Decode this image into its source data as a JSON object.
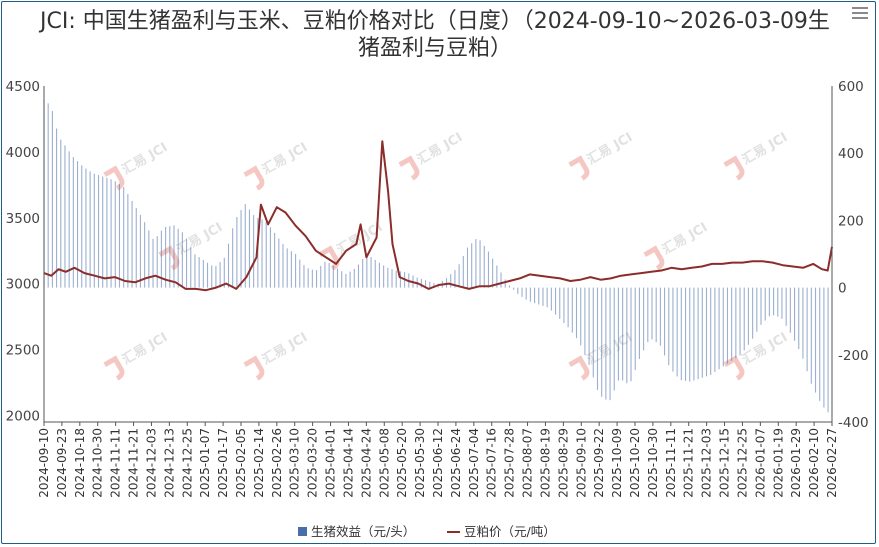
{
  "chart_data": {
    "type": "bar+line",
    "title": "JCI: 中国生猪盈利与玉米、豆粕价格对比（日度）（2024-09-10~2026-03-09生猪盈利与豆粕）",
    "watermark": "汇易 JCI",
    "x_range": [
      "2024-09-10",
      "2026-03-09"
    ],
    "x_tick_labels": [
      "2024-09-10",
      "2024-09-23",
      "2024-10-18",
      "2024-10-30",
      "2024-11-11",
      "2024-11-21",
      "2024-12-03",
      "2024-12-13",
      "2024-12-25",
      "2025-01-07",
      "2025-01-17",
      "2025-02-05",
      "2025-02-14",
      "2025-02-26",
      "2025-03-10",
      "2025-03-20",
      "2025-04-01",
      "2025-04-14",
      "2025-04-24",
      "2025-05-08",
      "2025-05-20",
      "2025-05-30",
      "2025-06-12",
      "2025-06-24",
      "2025-07-04",
      "2025-07-16",
      "2025-07-28",
      "2025-08-07",
      "2025-08-19",
      "2025-08-29",
      "2025-09-10",
      "2025-09-22",
      "2025-10-09",
      "2025-10-20",
      "2025-10-30",
      "2025-11-11",
      "2025-11-21",
      "2025-12-03",
      "2025-12-15",
      "2025-12-25",
      "2026-01-07",
      "2026-01-19",
      "2026-01-29",
      "2026-02-10",
      "2026-02-27"
    ],
    "y_left": {
      "range": [
        1950,
        4500
      ],
      "ticks": [
        2000,
        2500,
        3000,
        3500,
        4000,
        4500
      ]
    },
    "y_right": {
      "range": [
        -400,
        600
      ],
      "ticks": [
        -400,
        -200,
        0,
        200,
        400,
        600
      ]
    },
    "series": [
      {
        "name": "生猪效益（元/头）",
        "type": "bar",
        "axis": "right",
        "color": "#4a6ea9",
        "points": [
          [
            "2024-09-10",
            560
          ],
          [
            "2024-09-15",
            540
          ],
          [
            "2024-09-20",
            450
          ],
          [
            "2024-09-25",
            420
          ],
          [
            "2024-09-30",
            390
          ],
          [
            "2024-10-07",
            360
          ],
          [
            "2024-10-14",
            340
          ],
          [
            "2024-10-21",
            330
          ],
          [
            "2024-10-28",
            320
          ],
          [
            "2024-11-04",
            300
          ],
          [
            "2024-11-11",
            250
          ],
          [
            "2024-11-18",
            200
          ],
          [
            "2024-11-25",
            140
          ],
          [
            "2024-12-02",
            180
          ],
          [
            "2024-12-09",
            185
          ],
          [
            "2024-12-16",
            160
          ],
          [
            "2024-12-23",
            100
          ],
          [
            "2024-12-30",
            80
          ],
          [
            "2025-01-06",
            60
          ],
          [
            "2025-01-13",
            90
          ],
          [
            "2025-01-20",
            200
          ],
          [
            "2025-01-27",
            250
          ],
          [
            "2025-02-03",
            210
          ],
          [
            "2025-02-10",
            200
          ],
          [
            "2025-02-17",
            160
          ],
          [
            "2025-02-24",
            120
          ],
          [
            "2025-03-03",
            100
          ],
          [
            "2025-03-10",
            60
          ],
          [
            "2025-03-17",
            50
          ],
          [
            "2025-03-24",
            80
          ],
          [
            "2025-03-31",
            60
          ],
          [
            "2025-04-07",
            40
          ],
          [
            "2025-04-14",
            60
          ],
          [
            "2025-04-21",
            100
          ],
          [
            "2025-04-28",
            80
          ],
          [
            "2025-05-05",
            60
          ],
          [
            "2025-05-12",
            50
          ],
          [
            "2025-05-19",
            45
          ],
          [
            "2025-05-26",
            30
          ],
          [
            "2025-06-02",
            20
          ],
          [
            "2025-06-09",
            10
          ],
          [
            "2025-06-16",
            30
          ],
          [
            "2025-06-23",
            60
          ],
          [
            "2025-06-30",
            120
          ],
          [
            "2025-07-07",
            150
          ],
          [
            "2025-07-14",
            110
          ],
          [
            "2025-07-21",
            60
          ],
          [
            "2025-07-28",
            10
          ],
          [
            "2025-08-04",
            -20
          ],
          [
            "2025-08-11",
            -40
          ],
          [
            "2025-08-18",
            -50
          ],
          [
            "2025-08-25",
            -60
          ],
          [
            "2025-09-01",
            -90
          ],
          [
            "2025-09-08",
            -120
          ],
          [
            "2025-09-15",
            -160
          ],
          [
            "2025-09-22",
            -230
          ],
          [
            "2025-09-29",
            -320
          ],
          [
            "2025-10-06",
            -340
          ],
          [
            "2025-10-13",
            -270
          ],
          [
            "2025-10-20",
            -290
          ],
          [
            "2025-10-27",
            -210
          ],
          [
            "2025-11-03",
            -150
          ],
          [
            "2025-11-10",
            -170
          ],
          [
            "2025-11-17",
            -240
          ],
          [
            "2025-11-24",
            -275
          ],
          [
            "2025-12-01",
            -280
          ],
          [
            "2025-12-08",
            -270
          ],
          [
            "2025-12-15",
            -260
          ],
          [
            "2025-12-22",
            -240
          ],
          [
            "2025-12-29",
            -220
          ],
          [
            "2026-01-05",
            -200
          ],
          [
            "2026-01-12",
            -160
          ],
          [
            "2026-01-19",
            -110
          ],
          [
            "2026-01-26",
            -80
          ],
          [
            "2026-02-02",
            -90
          ],
          [
            "2026-02-09",
            -140
          ],
          [
            "2026-02-16",
            -200
          ],
          [
            "2026-02-23",
            -290
          ],
          [
            "2026-03-02",
            -350
          ],
          [
            "2026-03-09",
            -385
          ]
        ]
      },
      {
        "name": "豆粕价（元/吨）",
        "type": "line",
        "axis": "left",
        "color": "#8b2d2a",
        "points": [
          [
            "2024-09-10",
            3080
          ],
          [
            "2024-09-15",
            3060
          ],
          [
            "2024-09-20",
            3110
          ],
          [
            "2024-09-25",
            3090
          ],
          [
            "2024-10-01",
            3120
          ],
          [
            "2024-10-08",
            3080
          ],
          [
            "2024-10-15",
            3060
          ],
          [
            "2024-10-22",
            3040
          ],
          [
            "2024-10-29",
            3050
          ],
          [
            "2024-11-05",
            3020
          ],
          [
            "2024-11-12",
            3010
          ],
          [
            "2024-11-19",
            3040
          ],
          [
            "2024-11-26",
            3060
          ],
          [
            "2024-12-03",
            3030
          ],
          [
            "2024-12-10",
            3010
          ],
          [
            "2024-12-17",
            2960
          ],
          [
            "2024-12-24",
            2960
          ],
          [
            "2024-12-31",
            2950
          ],
          [
            "2025-01-07",
            2970
          ],
          [
            "2025-01-14",
            3000
          ],
          [
            "2025-01-21",
            2960
          ],
          [
            "2025-01-28",
            3050
          ],
          [
            "2025-02-04",
            3200
          ],
          [
            "2025-02-07",
            3600
          ],
          [
            "2025-02-12",
            3450
          ],
          [
            "2025-02-18",
            3580
          ],
          [
            "2025-02-24",
            3540
          ],
          [
            "2025-03-03",
            3440
          ],
          [
            "2025-03-10",
            3360
          ],
          [
            "2025-03-17",
            3250
          ],
          [
            "2025-03-24",
            3200
          ],
          [
            "2025-03-31",
            3150
          ],
          [
            "2025-04-07",
            3250
          ],
          [
            "2025-04-14",
            3300
          ],
          [
            "2025-04-17",
            3450
          ],
          [
            "2025-04-21",
            3200
          ],
          [
            "2025-04-28",
            3350
          ],
          [
            "2025-05-02",
            4080
          ],
          [
            "2025-05-06",
            3700
          ],
          [
            "2025-05-09",
            3300
          ],
          [
            "2025-05-14",
            3050
          ],
          [
            "2025-05-20",
            3020
          ],
          [
            "2025-05-27",
            3000
          ],
          [
            "2025-06-03",
            2960
          ],
          [
            "2025-06-10",
            2990
          ],
          [
            "2025-06-17",
            3000
          ],
          [
            "2025-06-24",
            2980
          ],
          [
            "2025-07-01",
            2960
          ],
          [
            "2025-07-08",
            2980
          ],
          [
            "2025-07-15",
            2980
          ],
          [
            "2025-07-22",
            3000
          ],
          [
            "2025-07-29",
            3020
          ],
          [
            "2025-08-05",
            3040
          ],
          [
            "2025-08-12",
            3070
          ],
          [
            "2025-08-19",
            3060
          ],
          [
            "2025-08-26",
            3050
          ],
          [
            "2025-09-02",
            3040
          ],
          [
            "2025-09-09",
            3020
          ],
          [
            "2025-09-16",
            3030
          ],
          [
            "2025-09-23",
            3050
          ],
          [
            "2025-09-30",
            3030
          ],
          [
            "2025-10-07",
            3040
          ],
          [
            "2025-10-14",
            3060
          ],
          [
            "2025-10-21",
            3070
          ],
          [
            "2025-10-28",
            3080
          ],
          [
            "2025-11-04",
            3090
          ],
          [
            "2025-11-11",
            3100
          ],
          [
            "2025-11-18",
            3120
          ],
          [
            "2025-11-25",
            3110
          ],
          [
            "2025-12-02",
            3120
          ],
          [
            "2025-12-09",
            3130
          ],
          [
            "2025-12-16",
            3150
          ],
          [
            "2025-12-23",
            3150
          ],
          [
            "2025-12-30",
            3160
          ],
          [
            "2026-01-06",
            3160
          ],
          [
            "2026-01-13",
            3170
          ],
          [
            "2026-01-20",
            3170
          ],
          [
            "2026-01-27",
            3160
          ],
          [
            "2026-02-03",
            3140
          ],
          [
            "2026-02-10",
            3130
          ],
          [
            "2026-02-17",
            3120
          ],
          [
            "2026-02-24",
            3150
          ],
          [
            "2026-03-02",
            3110
          ],
          [
            "2026-03-06",
            3100
          ],
          [
            "2026-03-09",
            3280
          ]
        ]
      }
    ],
    "legend": {
      "position": "bottom-center",
      "items": [
        "生猪效益（元/头）",
        "豆粕价（元/吨）"
      ]
    },
    "grid": false
  }
}
